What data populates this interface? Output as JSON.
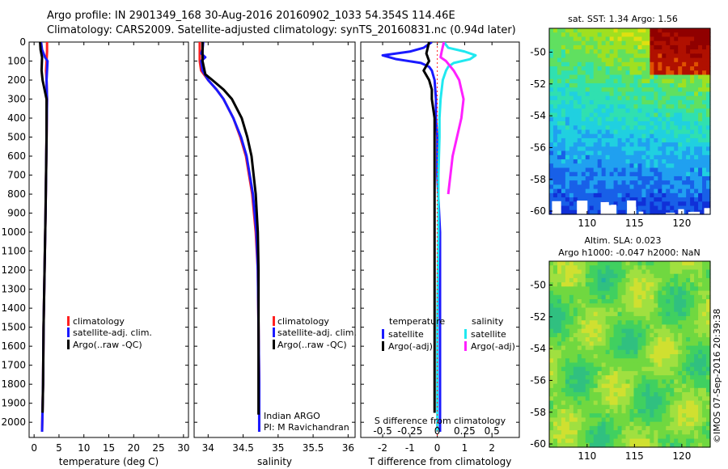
{
  "header": {
    "line1": "Argo profile: IN 2901349_168 30-Aug-2016 20160902_1033 54.354S 114.46E",
    "line2": "Climatology: CARS2009. Satellite-adjusted climatology: synTS_20160831.nc (0.94d later)"
  },
  "colors": {
    "climatology": "#ff2020",
    "satellite_adj": "#1a1aff",
    "argo": "#000000",
    "salinity_satellite": "#20e8f0",
    "salinity_argo": "#ff20ff"
  },
  "chart_data": [
    {
      "id": "temperature",
      "type": "line",
      "xlabel": "temperature (deg C)",
      "ylabel": "",
      "xlim": [
        -1,
        31
      ],
      "ylim": [
        2080,
        0
      ],
      "xticks": [
        0,
        5,
        10,
        15,
        20,
        25,
        30
      ],
      "yticks": [
        0,
        100,
        200,
        300,
        400,
        500,
        600,
        700,
        800,
        900,
        1000,
        1100,
        1200,
        1300,
        1400,
        1500,
        1600,
        1700,
        1800,
        1900,
        2000
      ],
      "legend": [
        "climatology",
        "satellite-adj. clim.",
        "Argo(..raw -QC)"
      ],
      "series": [
        {
          "name": "climatology",
          "color": "#ff2020",
          "y": [
            0,
            50,
            100,
            150,
            200,
            300,
            500,
            700,
            900,
            1200,
            1500,
            1800,
            2050
          ],
          "values": [
            2.6,
            2.6,
            2.5,
            2.4,
            2.5,
            2.6,
            2.5,
            2.4,
            2.3,
            2.1,
            1.9,
            1.8,
            1.6
          ]
        },
        {
          "name": "satellite-adj. clim.",
          "color": "#1a1aff",
          "y": [
            0,
            40,
            80,
            100,
            150,
            200,
            300,
            500,
            700,
            900,
            1200,
            1500,
            1800,
            2050
          ],
          "values": [
            1.4,
            1.6,
            2.2,
            2.7,
            2.6,
            2.5,
            2.6,
            2.5,
            2.4,
            2.3,
            2.1,
            1.9,
            1.8,
            1.6
          ]
        },
        {
          "name": "Argo(..raw -QC)",
          "color": "#000000",
          "y": [
            0,
            40,
            80,
            150,
            200,
            300,
            500,
            700,
            900,
            1200,
            1500,
            1800,
            1950
          ],
          "values": [
            1.2,
            1.3,
            1.6,
            1.5,
            1.7,
            2.5,
            2.5,
            2.4,
            2.3,
            2.1,
            1.9,
            1.8,
            1.7
          ]
        }
      ]
    },
    {
      "id": "salinity",
      "type": "line",
      "xlabel": "salinity",
      "ylabel": "",
      "xlim": [
        33.8,
        36.1
      ],
      "ylim": [
        2080,
        0
      ],
      "xticks": [
        34,
        34.5,
        35,
        35.5,
        36
      ],
      "xticklabels": [
        "34",
        "34.5",
        "35",
        "35.5",
        "36"
      ],
      "legend": [
        "climatology",
        "satellite-adj. clim.",
        "Argo(..raw -QC)"
      ],
      "annotation": [
        "Indian ARGO",
        "PI: M Ravichandran"
      ],
      "series": [
        {
          "name": "climatology",
          "color": "#ff2020",
          "y": [
            0,
            100,
            150,
            200,
            250,
            300,
            400,
            500,
            600,
            800,
            1000,
            1200,
            1500,
            1800,
            2050
          ],
          "values": [
            33.88,
            33.88,
            33.9,
            34.0,
            34.12,
            34.22,
            34.36,
            34.46,
            34.54,
            34.63,
            34.68,
            34.71,
            34.72,
            34.73,
            34.73
          ]
        },
        {
          "name": "satellite-adj. clim.",
          "color": "#1a1aff",
          "y": [
            0,
            40,
            60,
            80,
            100,
            150,
            200,
            250,
            300,
            400,
            500,
            600,
            800,
            1000,
            1200,
            1500,
            1800,
            2050
          ],
          "values": [
            33.93,
            33.92,
            33.9,
            33.96,
            33.9,
            33.92,
            34.0,
            34.12,
            34.22,
            34.36,
            34.47,
            34.55,
            34.64,
            34.69,
            34.71,
            34.72,
            34.73,
            34.73
          ]
        },
        {
          "name": "Argo(..raw -QC)",
          "color": "#000000",
          "y": [
            0,
            100,
            170,
            200,
            250,
            300,
            400,
            500,
            600,
            800,
            1000,
            1200,
            1500,
            1800,
            1960
          ],
          "values": [
            33.92,
            33.92,
            33.96,
            34.06,
            34.22,
            34.34,
            34.48,
            34.56,
            34.62,
            34.68,
            34.71,
            34.72,
            34.72,
            34.72,
            34.72
          ]
        }
      ]
    },
    {
      "id": "differences",
      "type": "line",
      "xlabel": "T difference from climatology",
      "x2label": "S difference from climatology",
      "ylabel": "",
      "xlim": [
        -2.8,
        3.0
      ],
      "ylim": [
        2080,
        0
      ],
      "xticks": [
        -2,
        -1,
        0,
        1,
        2
      ],
      "x2ticks": [
        -0.5,
        -0.25,
        0,
        0.25,
        0.5
      ],
      "x2ticklabels": [
        "-0.5",
        "-0.25",
        "0",
        "0.25",
        "0.5"
      ],
      "legend_titles": [
        "temperature",
        "salinity"
      ],
      "legend": [
        "satellite",
        "Argo(-adj)",
        "satellite",
        "Argo(-adj)"
      ],
      "series": [
        {
          "name": "temperature satellite",
          "color": "#1a1aff",
          "y": [
            0,
            30,
            50,
            70,
            90,
            110,
            130,
            150,
            200,
            300,
            400,
            500,
            700,
            1000,
            1500,
            2050
          ],
          "values": [
            -0.2,
            -0.5,
            -1.0,
            -2.0,
            -1.5,
            -0.6,
            -0.3,
            -0.2,
            -0.1,
            -0.05,
            -0.05,
            0,
            0,
            0.1,
            0.1,
            0.1
          ]
        },
        {
          "name": "temperature Argo(-adj)",
          "color": "#000000",
          "y": [
            0,
            60,
            100,
            150,
            200,
            250,
            300,
            400,
            500,
            700,
            1000,
            1500,
            1950
          ],
          "values": [
            -0.3,
            -0.4,
            -0.3,
            -0.5,
            -0.3,
            -0.2,
            -0.2,
            -0.1,
            -0.1,
            -0.1,
            -0.1,
            -0.1,
            -0.1
          ]
        },
        {
          "name": "salinity satellite",
          "color": "#20e8f0",
          "y": [
            0,
            30,
            50,
            70,
            90,
            110,
            130,
            150,
            200,
            300,
            400,
            500,
            700,
            1000,
            1500,
            2050
          ],
          "values": [
            0.06,
            0.1,
            0.25,
            0.35,
            0.3,
            0.15,
            0.1,
            0.08,
            0.05,
            0.03,
            0.02,
            0.02,
            0.01,
            0.01,
            0.0,
            0.0
          ]
        },
        {
          "name": "salinity Argo(-adj)",
          "color": "#ff20ff",
          "y": [
            0,
            50,
            80,
            100,
            150,
            200,
            250,
            300,
            400,
            500,
            600,
            700,
            800
          ],
          "values": [
            0.06,
            0.04,
            0.03,
            0.08,
            0.15,
            0.2,
            0.22,
            0.24,
            0.22,
            0.18,
            0.14,
            0.12,
            0.1
          ]
        }
      ]
    },
    {
      "id": "sst_map",
      "type": "heatmap",
      "title": "sat. SST: 1.34  Argo: 1.56",
      "xticks": [
        110,
        115,
        120
      ],
      "yticks": [
        -50,
        -52,
        -54,
        -56,
        -58,
        -60
      ],
      "xlim": [
        106,
        123
      ],
      "ylim": [
        -60.2,
        -48.5
      ]
    },
    {
      "id": "sla_map",
      "type": "heatmap",
      "title_line1": "Altim. SLA: 0.023",
      "title_line2": "Argo h1000: -0.047 h2000: NaN",
      "xticks": [
        110,
        115,
        120
      ],
      "yticks": [
        -50,
        -52,
        -54,
        -56,
        -58,
        -60
      ],
      "xlim": [
        106,
        123
      ],
      "ylim": [
        -60.2,
        -48.5
      ],
      "side_label": "©IMOS 07-Sep-2016 20:39:38"
    }
  ]
}
